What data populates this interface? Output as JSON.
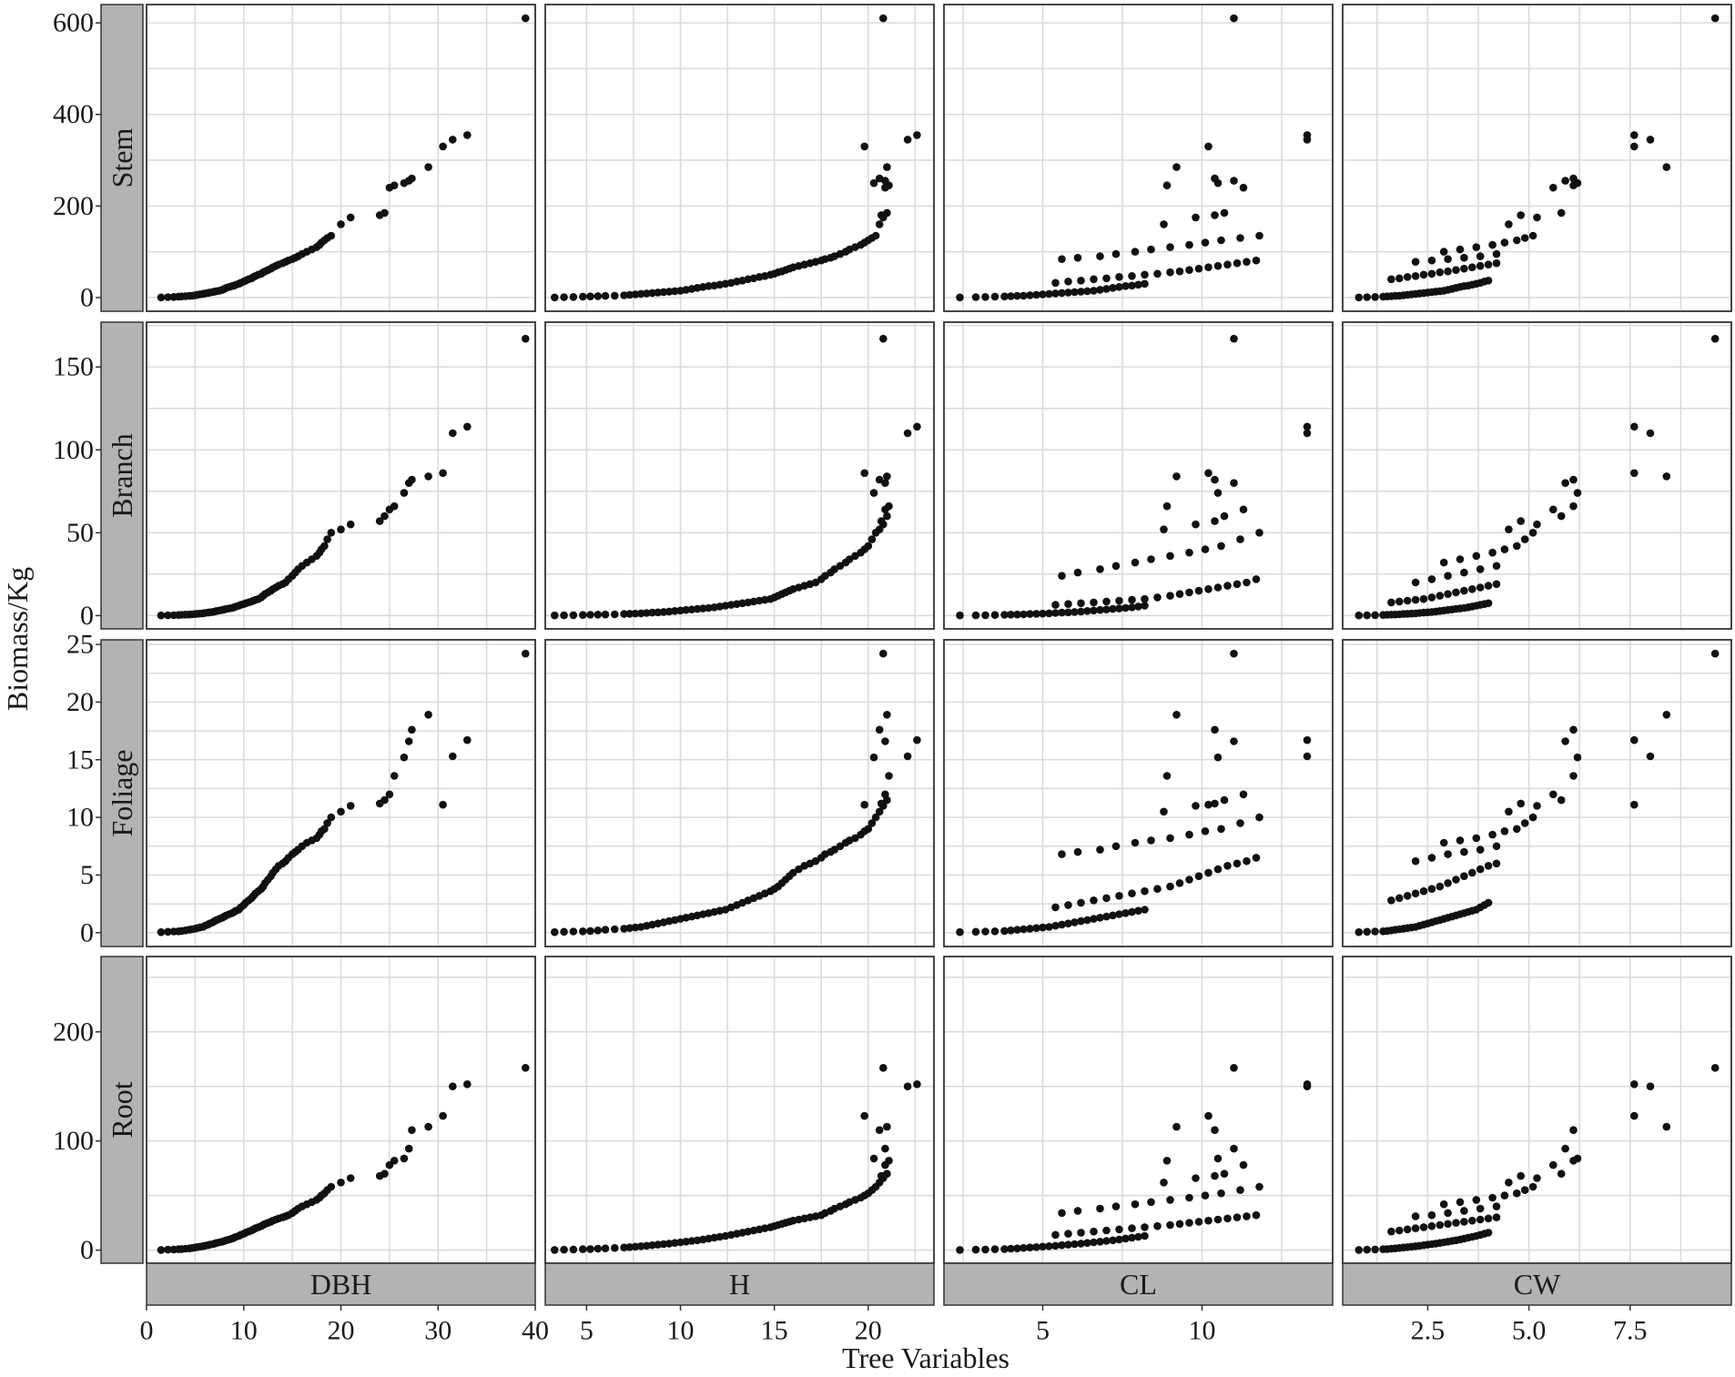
{
  "chart_data": {
    "type": "scatter",
    "layout": "facet-grid",
    "xlabel": "Tree Variables",
    "ylabel": "Biomass/Kg",
    "grid": true,
    "colors": {
      "point": "#111111",
      "strip": "#b3b3b3",
      "grid": "#d9d9d9",
      "panel_border": "#333333"
    },
    "columns": [
      {
        "name": "DBH",
        "xlim": [
          0,
          40
        ],
        "ticks": [
          0,
          10,
          20,
          30,
          40
        ],
        "tick_labels": [
          "0",
          "10",
          "20",
          "30",
          "40"
        ]
      },
      {
        "name": "H",
        "xlim": [
          2.8,
          23.5
        ],
        "ticks": [
          5,
          10,
          15,
          20
        ],
        "tick_labels": [
          "5",
          "10",
          "15",
          "20"
        ]
      },
      {
        "name": "CL",
        "xlim": [
          1.9,
          14.1
        ],
        "ticks": [
          5,
          10
        ],
        "tick_labels": [
          "5",
          "10"
        ]
      },
      {
        "name": "CW",
        "xlim": [
          0.4,
          10.0
        ],
        "ticks": [
          2.5,
          5.0,
          7.5
        ],
        "tick_labels": [
          "2.5",
          "5.0",
          "7.5"
        ]
      }
    ],
    "rows": [
      {
        "name": "Stem",
        "ylim": [
          -30,
          640
        ],
        "ticks": [
          0,
          200,
          400,
          600
        ],
        "tick_labels": [
          "0",
          "200",
          "400",
          "600"
        ]
      },
      {
        "name": "Branch",
        "ylim": [
          -8,
          177
        ],
        "ticks": [
          0,
          50,
          100,
          150
        ],
        "tick_labels": [
          "0",
          "50",
          "100",
          "150"
        ]
      },
      {
        "name": "Foliage",
        "ylim": [
          -1.2,
          25.4
        ],
        "ticks": [
          0,
          5,
          10,
          15,
          20,
          25
        ],
        "tick_labels": [
          "0",
          "5",
          "10",
          "15",
          "20",
          "25"
        ]
      },
      {
        "name": "Root",
        "ylim": [
          -12,
          269
        ],
        "ticks": [
          0,
          100,
          200
        ],
        "tick_labels": [
          "0",
          "100",
          "200"
        ]
      }
    ],
    "trees": {
      "DBH": [
        1.5,
        2.2,
        2.8,
        3.3,
        3.6,
        4.0,
        4.4,
        4.7,
        5.0,
        5.2,
        5.5,
        5.8,
        6.0,
        6.3,
        6.5,
        6.8,
        7.0,
        7.2,
        7.5,
        7.8,
        8.0,
        8.2,
        8.5,
        8.8,
        9.0,
        9.2,
        9.5,
        9.7,
        10.0,
        10.2,
        10.5,
        10.8,
        11.0,
        11.2,
        11.5,
        11.8,
        12.0,
        12.2,
        12.5,
        12.8,
        13.0,
        13.3,
        13.6,
        14.0,
        14.3,
        14.6,
        15.0,
        15.3,
        15.6,
        16.0,
        16.5,
        17.0,
        17.5,
        17.8,
        18.0,
        18.3,
        18.6,
        19.0,
        20.0,
        21.0,
        24.0,
        24.5,
        25.0,
        25.5,
        26.5,
        27.0,
        27.3,
        29.0,
        30.5,
        31.5,
        33.0,
        39.0
      ],
      "H": [
        3.3,
        3.8,
        4.3,
        4.8,
        5.2,
        5.6,
        6.0,
        6.5,
        7.0,
        7.3,
        7.6,
        7.9,
        8.2,
        8.5,
        8.8,
        9.1,
        9.4,
        9.7,
        10.0,
        10.3,
        10.6,
        10.9,
        11.2,
        11.5,
        11.8,
        12.1,
        12.4,
        12.7,
        13.0,
        13.3,
        13.6,
        13.9,
        14.2,
        14.5,
        14.8,
        15.0,
        15.2,
        15.4,
        15.6,
        15.8,
        16.0,
        16.3,
        16.6,
        16.9,
        17.2,
        17.5,
        17.7,
        18.0,
        18.2,
        18.5,
        18.8,
        19.0,
        19.3,
        19.6,
        19.8,
        20.0,
        20.2,
        20.4,
        20.6,
        20.8,
        20.7,
        21.0,
        20.9,
        21.1,
        20.3,
        20.9,
        20.6,
        21.0,
        19.8,
        22.1,
        22.6,
        20.8
      ],
      "CL": [
        2.4,
        2.9,
        3.2,
        3.5,
        3.8,
        4.0,
        4.2,
        4.4,
        4.6,
        4.8,
        5.0,
        5.2,
        5.4,
        5.6,
        5.8,
        6.0,
        6.2,
        6.4,
        6.6,
        6.8,
        7.0,
        7.2,
        7.4,
        7.6,
        7.8,
        8.0,
        8.2,
        5.4,
        5.8,
        6.2,
        6.6,
        7.0,
        7.4,
        7.8,
        8.2,
        8.6,
        9.0,
        9.3,
        9.6,
        9.9,
        10.2,
        10.5,
        10.8,
        11.1,
        11.4,
        11.7,
        5.6,
        6.1,
        6.8,
        7.3,
        7.9,
        8.4,
        9.0,
        9.6,
        10.1,
        10.6,
        11.2,
        11.8,
        8.8,
        9.8,
        10.4,
        10.7,
        11.3,
        8.9,
        10.5,
        11.0,
        10.4,
        9.2,
        10.2,
        13.3,
        13.3,
        11.0
      ],
      "CW": [
        0.8,
        1.0,
        1.2,
        1.4,
        1.5,
        1.6,
        1.7,
        1.8,
        1.9,
        2.0,
        2.1,
        2.2,
        2.3,
        2.4,
        2.5,
        2.6,
        2.7,
        2.8,
        2.9,
        3.0,
        3.1,
        3.2,
        3.3,
        3.4,
        3.5,
        3.6,
        3.7,
        3.8,
        3.9,
        4.0,
        1.6,
        1.8,
        2.0,
        2.2,
        2.4,
        2.6,
        2.8,
        3.0,
        3.2,
        3.4,
        3.6,
        3.8,
        4.0,
        4.2,
        2.2,
        2.6,
        3.0,
        3.4,
        3.8,
        4.2,
        2.9,
        3.3,
        3.7,
        4.1,
        4.4,
        4.7,
        4.9,
        5.1,
        4.5,
        5.2,
        4.8,
        5.8,
        5.6,
        6.1,
        6.2,
        5.9,
        6.1,
        8.4,
        7.6,
        8.0,
        7.6,
        9.6
      ]
    },
    "series": [
      {
        "name": "Stem",
        "values": [
          0.3,
          0.8,
          1.2,
          2,
          2.5,
          3,
          3.5,
          4,
          5,
          6,
          7,
          8,
          9,
          10,
          11,
          12,
          13,
          14,
          15,
          17,
          19,
          21,
          23,
          25,
          26,
          28,
          30,
          32,
          35,
          37,
          40,
          42,
          45,
          47,
          50,
          52,
          55,
          57,
          60,
          63,
          66,
          69,
          72,
          75,
          78,
          81,
          84,
          87,
          90,
          95,
          100,
          105,
          110,
          115,
          120,
          125,
          130,
          135,
          160,
          175,
          180,
          185,
          240,
          245,
          250,
          255,
          260,
          285,
          330,
          345,
          355,
          610
        ]
      },
      {
        "name": "Branch",
        "values": [
          0.1,
          0.2,
          0.3,
          0.4,
          0.5,
          0.6,
          0.7,
          0.8,
          1.0,
          1.1,
          1.2,
          1.4,
          1.6,
          1.8,
          2.0,
          2.2,
          2.5,
          2.8,
          3.1,
          3.4,
          3.7,
          4.0,
          4.3,
          4.6,
          5.0,
          5.5,
          6.0,
          6.5,
          7.0,
          7.5,
          8.0,
          8.5,
          9.0,
          9.5,
          10,
          11,
          12,
          13,
          14,
          15,
          16,
          17,
          18,
          19,
          20,
          22,
          24,
          26,
          28,
          30,
          32,
          34,
          36,
          38,
          40,
          42,
          46,
          50,
          52,
          55,
          57,
          60,
          64,
          66,
          74,
          80,
          82,
          84,
          86,
          110,
          114,
          167
        ]
      },
      {
        "name": "Foliage",
        "values": [
          0.05,
          0.08,
          0.1,
          0.12,
          0.15,
          0.2,
          0.25,
          0.3,
          0.35,
          0.4,
          0.45,
          0.5,
          0.6,
          0.7,
          0.8,
          0.9,
          1.0,
          1.1,
          1.2,
          1.3,
          1.4,
          1.5,
          1.6,
          1.7,
          1.8,
          1.9,
          2.0,
          2.2,
          2.4,
          2.6,
          2.8,
          3.0,
          3.2,
          3.4,
          3.6,
          3.8,
          4.0,
          4.3,
          4.6,
          4.9,
          5.2,
          5.5,
          5.8,
          6.0,
          6.2,
          6.5,
          6.8,
          7.0,
          7.2,
          7.5,
          7.8,
          8.0,
          8.2,
          8.5,
          8.8,
          9.0,
          9.5,
          10.0,
          10.5,
          11.0,
          11.2,
          11.5,
          12.0,
          13.6,
          15.2,
          16.6,
          17.6,
          18.9,
          11.1,
          15.3,
          16.7,
          24.2
        ]
      },
      {
        "name": "Root",
        "values": [
          0.2,
          0.4,
          0.6,
          0.8,
          1.0,
          1.3,
          1.6,
          2.0,
          2.4,
          2.8,
          3.2,
          3.6,
          4.0,
          4.5,
          5.0,
          5.5,
          6.0,
          6.6,
          7.2,
          7.8,
          8.4,
          9.0,
          9.8,
          10.6,
          11.4,
          12.2,
          13.0,
          14,
          15,
          16,
          17,
          18,
          19,
          20,
          21,
          22,
          23,
          24,
          25,
          26,
          27,
          28,
          29,
          30,
          31,
          32,
          34,
          36,
          38,
          40,
          42,
          44,
          46,
          48,
          50,
          52,
          55,
          58,
          62,
          66,
          68,
          70,
          78,
          82,
          84,
          93,
          110,
          113,
          123,
          150,
          152,
          167
        ]
      }
    ]
  }
}
